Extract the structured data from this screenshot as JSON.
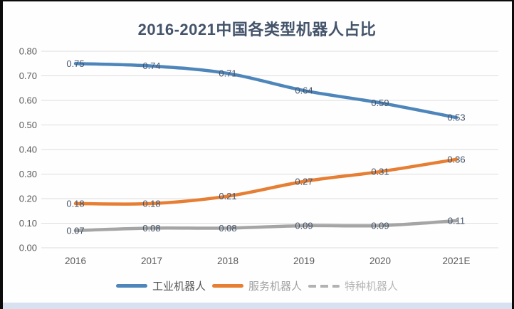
{
  "chart_data": {
    "type": "line",
    "title": "2016-2021中国各类型机器人占比",
    "categories": [
      "2016",
      "2017",
      "2018",
      "2019",
      "2020",
      "2021E"
    ],
    "series": [
      {
        "name": "工业机器人",
        "color": "#4e86bb",
        "values": [
          0.75,
          0.74,
          0.71,
          0.64,
          0.59,
          0.53
        ]
      },
      {
        "name": "服务机器人",
        "color": "#e67e33",
        "values": [
          0.18,
          0.18,
          0.21,
          0.27,
          0.31,
          0.36
        ]
      },
      {
        "name": "特种机器人",
        "color": "#a5a5a5",
        "values": [
          0.07,
          0.08,
          0.08,
          0.09,
          0.09,
          0.11
        ]
      }
    ],
    "xlabel": "",
    "ylabel": "",
    "ylim": [
      0,
      0.8
    ],
    "ytick_labels": [
      "0.80",
      "0.70",
      "0.60",
      "0.50",
      "0.40",
      "0.30",
      "0.20",
      "0.10",
      "0.00"
    ],
    "grid": true,
    "smooth_lines": true,
    "data_labels": true,
    "legend_position": "bottom"
  },
  "styles": {
    "title_color": "#44546a",
    "grid_color": "#dcdcdc",
    "axis_label_color": "#595959",
    "data_label_color": "#44546a",
    "bottom_strip_color": "#d7e1f0",
    "frame_border_color": "#0b0b0b",
    "background": "#ffffff"
  }
}
